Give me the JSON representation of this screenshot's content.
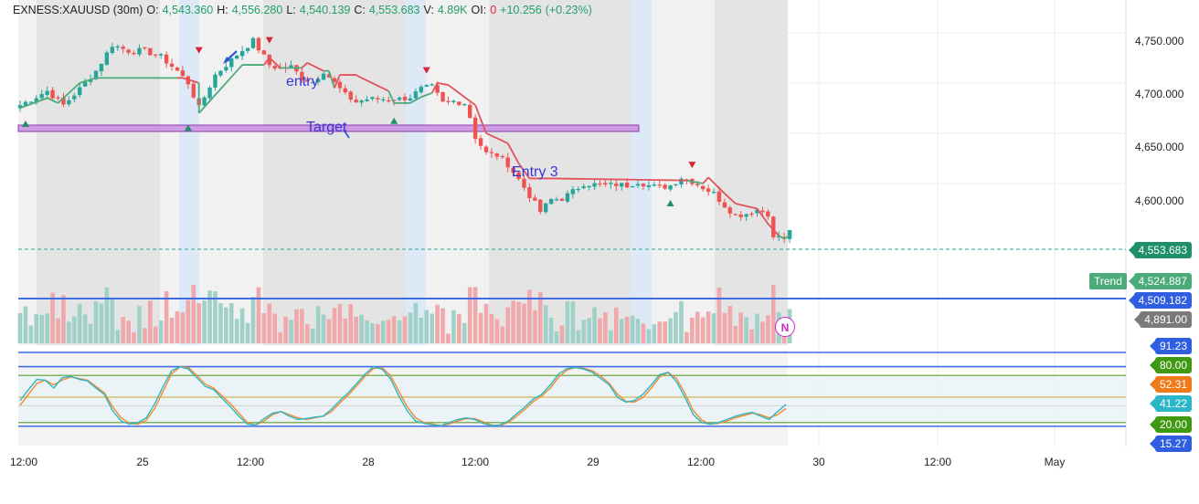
{
  "header": {
    "symbol": "EXNESS:XAUUSD (30m)",
    "o_label": "O:",
    "o_value": "4,543.360",
    "h_label": "H:",
    "h_value": "4,556.280",
    "l_label": "L:",
    "l_value": "4,540.139",
    "c_label": "C:",
    "c_value": "4,553.683",
    "v_label": "V:",
    "v_value": "4.89K",
    "oi_label": "OI:",
    "oi_value": "0",
    "change": "+10.256",
    "change_pct": "(+0.23%)"
  },
  "annotations": {
    "entry": "entry",
    "target": "Target",
    "entry3": "Entry 3"
  },
  "badges": {
    "n": "N",
    "trend": "Trend"
  },
  "price_axis": {
    "ticks": [
      "4,750.000",
      "4,700.000",
      "4,650.000",
      "4,600.000"
    ]
  },
  "price_tags": {
    "last": "4,553.683",
    "trend": "4,524.887",
    "line": "4,509.182",
    "volume": "4,891.00"
  },
  "osc_tags": {
    "t1": "91.23",
    "t2": "80.00",
    "t3": "52.31",
    "t4": "41.22",
    "t5": "20.00",
    "t6": "15.27"
  },
  "time_axis": {
    "labels": [
      "12:00",
      "25",
      "12:00",
      "28",
      "12:00",
      "29",
      "12:00",
      "30",
      "12:00",
      "May"
    ]
  },
  "colors": {
    "up": "#26a69a",
    "down": "#ef5350",
    "trend_up": "#4bab79",
    "trend_down": "#e3525c",
    "line_blue": "#3d6ee8",
    "target_zone": "#c98ee0",
    "stoch_k": "#2bb7c8",
    "stoch_d": "#f08a2a"
  },
  "chart_data": {
    "type": "candlestick",
    "title": "EXNESS:XAUUSD (30m)",
    "ylim": [
      4530,
      4768
    ],
    "y_ticks": [
      4750,
      4700,
      4650,
      4600
    ],
    "last_price": 4553.683,
    "target_zone": [
      4665,
      4670
    ],
    "horizontal_line": 4509.182,
    "trend_value": 4524.887,
    "price_path": [
      [
        0,
        4678
      ],
      [
        5,
        4692
      ],
      [
        8,
        4678
      ],
      [
        11,
        4694
      ],
      [
        14,
        4712
      ],
      [
        17,
        4738
      ],
      [
        20,
        4732
      ],
      [
        23,
        4732
      ],
      [
        26,
        4726
      ],
      [
        29,
        4712
      ],
      [
        31,
        4700
      ],
      [
        33,
        4675
      ],
      [
        36,
        4708
      ],
      [
        40,
        4728
      ],
      [
        43,
        4742
      ],
      [
        46,
        4718
      ],
      [
        48,
        4714
      ],
      [
        50,
        4716
      ],
      [
        52,
        4705
      ],
      [
        54,
        4701
      ],
      [
        56,
        4712
      ],
      [
        58,
        4700
      ],
      [
        60,
        4688
      ],
      [
        62,
        4681
      ],
      [
        64,
        4684
      ],
      [
        66,
        4684
      ],
      [
        68,
        4684
      ],
      [
        70,
        4684
      ],
      [
        72,
        4686
      ],
      [
        74,
        4694
      ],
      [
        76,
        4696
      ],
      [
        78,
        4680
      ],
      [
        80,
        4682
      ],
      [
        82,
        4680
      ],
      [
        83,
        4666
      ],
      [
        84,
        4646
      ],
      [
        86,
        4630
      ],
      [
        88,
        4628
      ],
      [
        90,
        4619
      ],
      [
        92,
        4604
      ],
      [
        94,
        4588
      ],
      [
        96,
        4572
      ],
      [
        98,
        4584
      ],
      [
        100,
        4585
      ],
      [
        102,
        4592
      ],
      [
        104,
        4600
      ],
      [
        106,
        4599
      ],
      [
        108,
        4598
      ],
      [
        110,
        4599
      ],
      [
        112,
        4598
      ],
      [
        114,
        4602
      ],
      [
        116,
        4598
      ],
      [
        118,
        4596
      ],
      [
        120,
        4598
      ],
      [
        122,
        4606
      ],
      [
        124,
        4602
      ],
      [
        126,
        4596
      ],
      [
        128,
        4590
      ],
      [
        130,
        4578
      ],
      [
        132,
        4568
      ],
      [
        134,
        4570
      ],
      [
        136,
        4574
      ],
      [
        138,
        4570
      ],
      [
        139,
        4545
      ],
      [
        140,
        4548
      ],
      [
        141,
        4544
      ],
      [
        142,
        4553.7
      ]
    ],
    "trend_line": [
      [
        0,
        4675,
        "up"
      ],
      [
        5,
        4685,
        "up"
      ],
      [
        7,
        4680,
        "up"
      ],
      [
        11,
        4700,
        "up"
      ],
      [
        14,
        4705,
        "up"
      ],
      [
        29,
        4705,
        "up"
      ],
      [
        30,
        4705,
        "down"
      ],
      [
        33,
        4700,
        "down"
      ],
      [
        33,
        4670,
        "up"
      ],
      [
        38,
        4700,
        "up"
      ],
      [
        41,
        4718,
        "up"
      ],
      [
        45,
        4718,
        "up"
      ],
      [
        46,
        4725,
        "down"
      ],
      [
        48,
        4715,
        "down"
      ],
      [
        49,
        4715,
        "up"
      ],
      [
        52,
        4715,
        "up"
      ],
      [
        53,
        4720,
        "down"
      ],
      [
        56,
        4712,
        "down"
      ],
      [
        57,
        4712,
        "up"
      ],
      [
        58,
        4695,
        "up"
      ],
      [
        59,
        4708,
        "down"
      ],
      [
        62,
        4708,
        "down"
      ],
      [
        63,
        4705,
        "down"
      ],
      [
        68,
        4692,
        "down"
      ],
      [
        69,
        4680,
        "up"
      ],
      [
        72,
        4680,
        "up"
      ],
      [
        74,
        4686,
        "up"
      ],
      [
        76,
        4690,
        "up"
      ],
      [
        77,
        4700,
        "down"
      ],
      [
        79,
        4698,
        "down"
      ],
      [
        81,
        4690,
        "down"
      ],
      [
        84,
        4678,
        "down"
      ],
      [
        86,
        4650,
        "down"
      ],
      [
        90,
        4640,
        "down"
      ],
      [
        92,
        4620,
        "down"
      ],
      [
        94,
        4605,
        "down"
      ],
      [
        98,
        4605,
        "down"
      ],
      [
        123,
        4603,
        "down"
      ],
      [
        124,
        4602,
        "up"
      ],
      [
        126,
        4600,
        "up"
      ],
      [
        127,
        4606,
        "down"
      ],
      [
        130,
        4590,
        "down"
      ],
      [
        132,
        4580,
        "down"
      ],
      [
        136,
        4575,
        "down"
      ],
      [
        138,
        4560,
        "down"
      ],
      [
        140,
        4548,
        "down"
      ],
      [
        141,
        4545,
        "up"
      ],
      [
        142,
        4548,
        "up"
      ]
    ],
    "osc": {
      "ylim": [
        0,
        100
      ],
      "levels": [
        91.23,
        80,
        52.31,
        41.22,
        20,
        15.27
      ],
      "k": [
        48,
        62,
        75,
        74,
        64,
        77,
        79,
        75,
        73,
        64,
        56,
        35,
        22,
        18,
        20,
        26,
        44,
        66,
        86,
        91,
        88,
        77,
        66,
        62,
        51,
        40,
        28,
        18,
        17,
        25,
        32,
        34,
        28,
        24,
        25,
        27,
        28,
        37,
        48,
        58,
        70,
        82,
        91,
        88,
        76,
        54,
        35,
        22,
        19,
        17,
        16,
        20,
        24,
        26,
        24,
        19,
        16,
        17,
        22,
        31,
        40,
        50,
        56,
        68,
        82,
        89,
        90,
        88,
        84,
        76,
        68,
        52,
        46,
        48,
        56,
        68,
        81,
        84,
        72,
        52,
        30,
        20,
        18,
        20,
        24,
        28,
        31,
        33,
        28,
        24,
        34,
        43
      ],
      "d": [
        42,
        56,
        70,
        74,
        68,
        74,
        78,
        76,
        74,
        66,
        58,
        40,
        26,
        19,
        18,
        23,
        38,
        60,
        82,
        91,
        90,
        80,
        69,
        64,
        54,
        44,
        32,
        20,
        17,
        22,
        30,
        34,
        30,
        26,
        24,
        26,
        28,
        34,
        45,
        55,
        67,
        79,
        89,
        90,
        80,
        60,
        40,
        26,
        20,
        18,
        16,
        18,
        22,
        25,
        25,
        21,
        17,
        16,
        20,
        28,
        37,
        47,
        54,
        64,
        78,
        87,
        90,
        89,
        86,
        79,
        70,
        56,
        47,
        46,
        52,
        64,
        78,
        84,
        76,
        57,
        35,
        23,
        18,
        19,
        22,
        26,
        29,
        32,
        30,
        26,
        30,
        38
      ]
    }
  }
}
